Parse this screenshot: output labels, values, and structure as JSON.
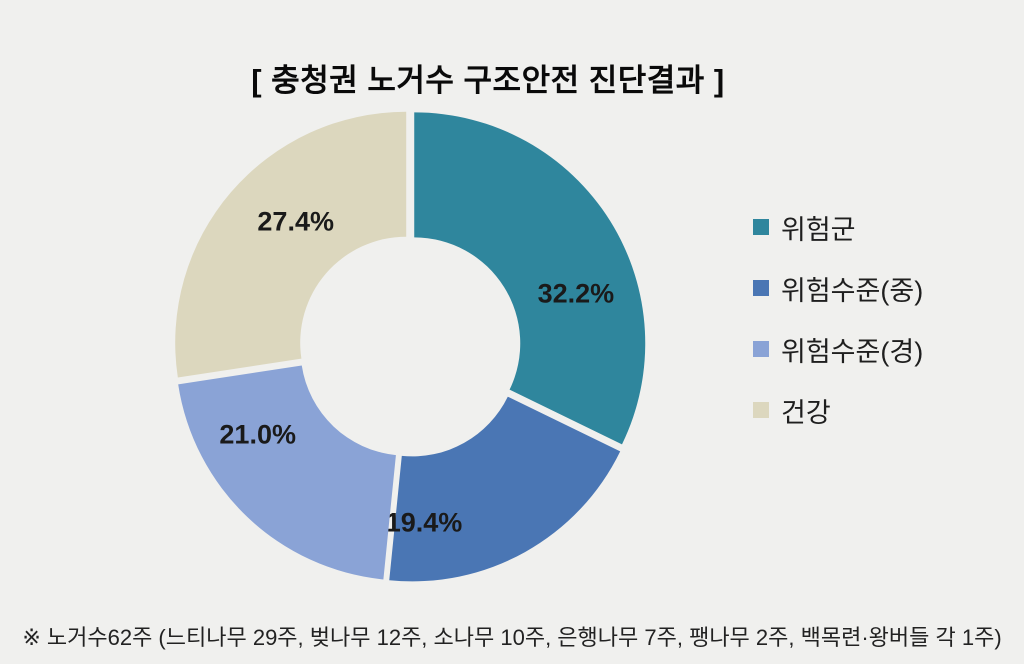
{
  "title": "[ 충청권 노거수 구조안전 진단결과 ]",
  "chart_data": {
    "type": "pie",
    "subtype": "donut",
    "title": "[ 충청권 노거수 구조안전 진단결과 ]",
    "categories": [
      "위험군",
      "위험수준(중)",
      "위험수준(경)",
      "건강"
    ],
    "values": [
      32.2,
      19.4,
      21.0,
      27.4
    ],
    "labels": [
      "32.2%",
      "19.4%",
      "21.0%",
      "27.4%"
    ],
    "colors": [
      "#2F869D",
      "#4A76B4",
      "#8AA3D6",
      "#DCD7BE"
    ],
    "unit": "%",
    "start_angle": 0,
    "direction": "clockwise",
    "donut_hole_ratio": 0.46,
    "legend_position": "right",
    "slice_gap": true
  },
  "legend": {
    "items": [
      {
        "label": "위험군",
        "color": "#2F869D"
      },
      {
        "label": "위험수준(중)",
        "color": "#4A76B4"
      },
      {
        "label": "위험수준(경)",
        "color": "#8AA3D6"
      },
      {
        "label": "건강",
        "color": "#DCD7BE"
      }
    ]
  },
  "footnote": "※ 노거수62주 (느티나무 29주, 벚나무 12주, 소나무 10주, 은행나무 7주, 팽나무 2주, 백목련·왕버들 각 1주)",
  "colors": {
    "background": "#F0F0EE",
    "title_text": "#0A0A0A",
    "slice_label_text": "#1A1A1A",
    "legend_text": "#1F1F1F",
    "footnote_text": "#222222"
  }
}
